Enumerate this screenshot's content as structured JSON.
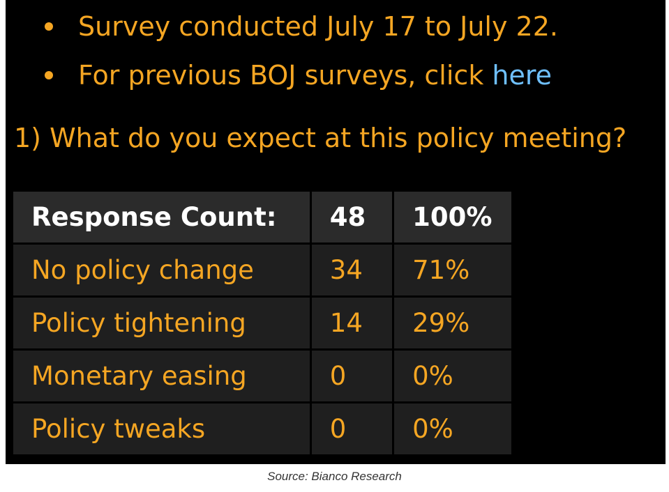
{
  "bullets": [
    {
      "text": "Survey conducted July 17 to July 22."
    },
    {
      "text": "For previous BOJ surveys, click ",
      "link": "here"
    }
  ],
  "question": "1) What do you expect at this policy meeting?",
  "table": {
    "header": {
      "label": "Response Count:",
      "count": "48",
      "percent": "100%"
    },
    "rows": [
      {
        "label": "No policy change",
        "count": "34",
        "percent": "71%"
      },
      {
        "label": "Policy tightening",
        "count": "14",
        "percent": "29%"
      },
      {
        "label": "Monetary easing",
        "count": "0",
        "percent": "0%"
      },
      {
        "label": "Policy tweaks",
        "count": "0",
        "percent": "0%"
      }
    ]
  },
  "source": "Source: Bianco Research",
  "colors": {
    "background": "#000000",
    "text_orange": "#f5a623",
    "link_blue": "#6fc0ff",
    "header_text": "#ffffff",
    "cell_bg": "#1f1f1f"
  }
}
